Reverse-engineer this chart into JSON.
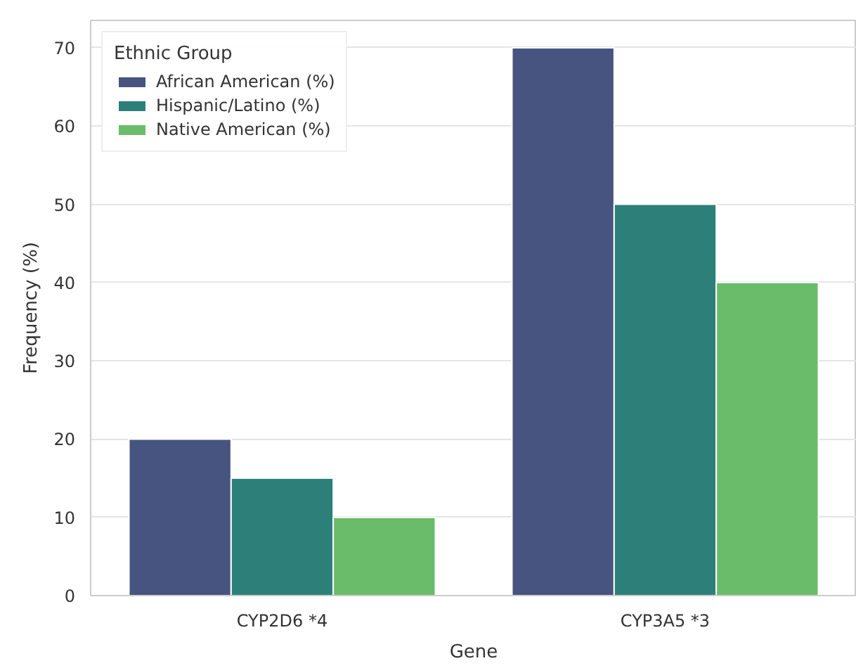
{
  "chart_data": {
    "type": "bar",
    "xlabel": "Gene",
    "ylabel": "Frequency (%)",
    "legend_title": "Ethnic Group",
    "categories": [
      "CYP2D6 *4",
      "CYP3A5 *3"
    ],
    "series": [
      {
        "name": "African American (%)",
        "color": "#46547f",
        "values": [
          20,
          70
        ]
      },
      {
        "name": "Hispanic/Latino (%)",
        "color": "#2d8079",
        "values": [
          15,
          50
        ]
      },
      {
        "name": "Native American (%)",
        "color": "#6abc6b",
        "values": [
          10,
          40
        ]
      }
    ],
    "ylim": [
      0,
      73.5
    ],
    "yticks": [
      0,
      10,
      20,
      30,
      40,
      50,
      60,
      70
    ],
    "grid": "y",
    "legend": "top left"
  }
}
